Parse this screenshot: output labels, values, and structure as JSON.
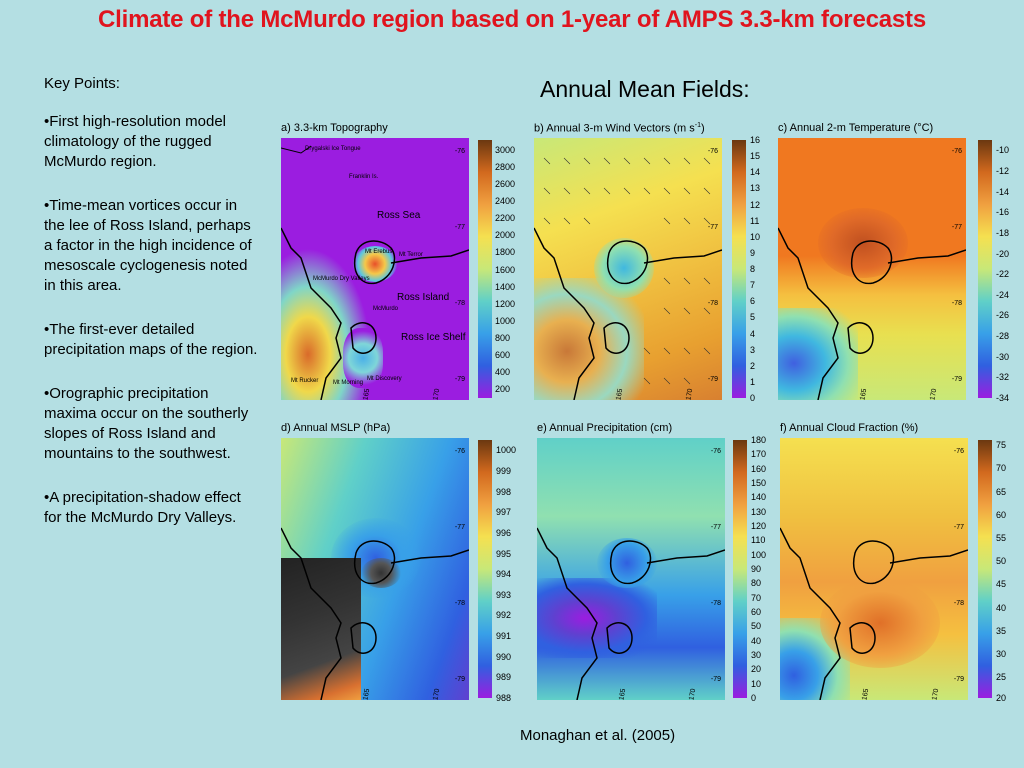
{
  "title": "Climate of the McMurdo region based on 1-year of AMPS 3.3-km forecasts",
  "key_points": {
    "heading": "Key Points:",
    "items": [
      "•First high-resolution model climatology of the rugged McMurdo region.",
      "•Time-mean vortices occur in the lee of Ross Island, perhaps a factor in the high incidence of mesoscale cyclogenesis noted in this area.",
      "•The first-ever detailed precipitation maps of the region.",
      "•Orographic precipitation maxima occur on the southerly slopes of Ross Island and mountains to the southwest.",
      "•A precipitation-shadow effect for the McMurdo Dry Valleys."
    ]
  },
  "subheading": "Annual Mean Fields:",
  "credit": "Monaghan et al. (2005)",
  "panels": {
    "a": {
      "title": "a) 3.3-km Topography",
      "ticks": [
        "3000",
        "2800",
        "2600",
        "2400",
        "2200",
        "2000",
        "1800",
        "1600",
        "1400",
        "1200",
        "1000",
        "800",
        "600",
        "400",
        "200"
      ],
      "labels": {
        "tongue": "Drygalski Ice Tongue",
        "franklin": "Franklin Is.",
        "ross_sea": "Ross Sea",
        "erebus": "Mt Erebus",
        "terror": "Mt Terror",
        "dry_valleys": "McMurdo Dry Valleys",
        "ross_island": "Ross Island",
        "mcmurdo": "McMurdo",
        "shelf": "Ross Ice Shelf",
        "rucker": "Mt Rucker",
        "morning": "Mt Morning",
        "discovery": "Mt Discovery"
      }
    },
    "b": {
      "title_prefix": "b) Annual 3-m Wind Vectors (m s",
      "title_sup": "-1",
      "title_suffix": ")",
      "ticks": [
        "16",
        "15",
        "14",
        "13",
        "12",
        "11",
        "10",
        "9",
        "8",
        "7",
        "6",
        "5",
        "4",
        "3",
        "2",
        "1",
        "0"
      ]
    },
    "c": {
      "title": "c) Annual 2-m Temperature (°C)",
      "ticks": [
        "-10",
        "-12",
        "-14",
        "-16",
        "-18",
        "-20",
        "-22",
        "-24",
        "-26",
        "-28",
        "-30",
        "-32",
        "-34"
      ]
    },
    "d": {
      "title": "d) Annual MSLP (hPa)",
      "ticks": [
        "1000",
        "999",
        "998",
        "997",
        "996",
        "995",
        "994",
        "993",
        "992",
        "991",
        "990",
        "989",
        "988"
      ]
    },
    "e": {
      "title": "e) Annual Precipitation (cm)",
      "ticks": [
        "180",
        "170",
        "160",
        "150",
        "140",
        "130",
        "120",
        "110",
        "100",
        "90",
        "80",
        "70",
        "60",
        "50",
        "40",
        "30",
        "20",
        "10",
        "0"
      ]
    },
    "f": {
      "title": "f) Annual Cloud Fraction (%)",
      "ticks": [
        "75",
        "70",
        "65",
        "60",
        "55",
        "50",
        "45",
        "40",
        "35",
        "30",
        "25",
        "20"
      ]
    }
  },
  "map_axes": {
    "lat": [
      "-76",
      "-77",
      "-78",
      "-79"
    ],
    "lon": [
      "165",
      "170"
    ]
  },
  "colors": {
    "title": "#e0141e",
    "background": "#b4dfe3"
  }
}
